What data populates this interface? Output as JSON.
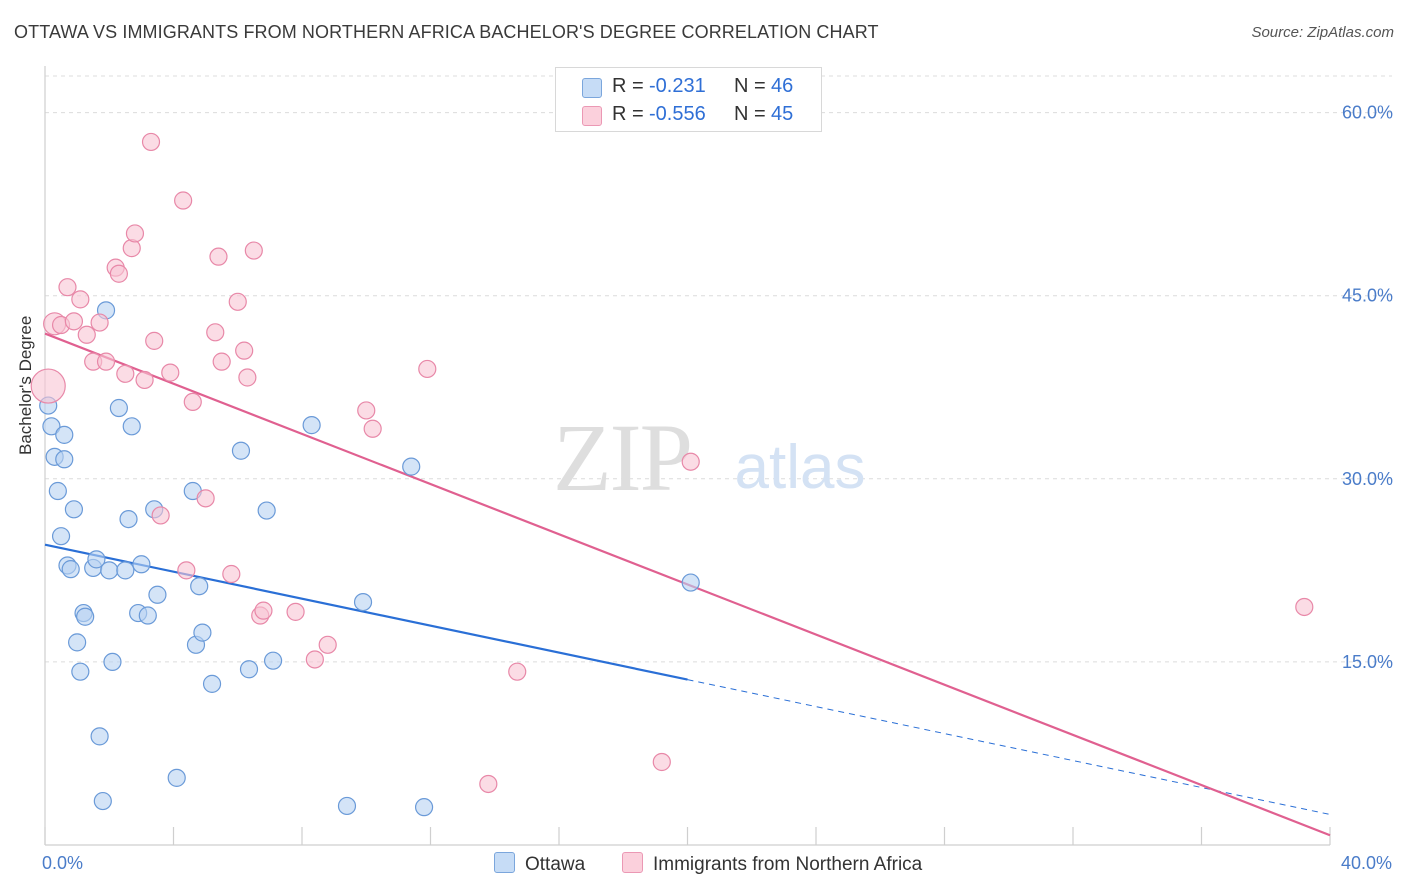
{
  "title": "OTTAWA VS IMMIGRANTS FROM NORTHERN AFRICA BACHELOR'S DEGREE CORRELATION CHART",
  "source": "Source: ZipAtlas.com",
  "watermark": {
    "zip": "ZIP",
    "atlas": "atlas"
  },
  "legend": {
    "r_label": "R =",
    "n_label": "N =",
    "rows": [
      {
        "r": "-0.231",
        "n": "46",
        "color": "#a8c8f0"
      },
      {
        "r": "-0.556",
        "n": "45",
        "color": "#f8b8cc"
      }
    ]
  },
  "bottom_legend": [
    "Ottawa",
    "Immigrants from Northern Africa"
  ],
  "colors": {
    "ottawa_fill": "#b8d2f2",
    "ottawa_stroke": "#6a9ad8",
    "ottawa_line": "#2a6fd6",
    "nafrica_fill": "#f9c4d4",
    "nafrica_stroke": "#e888a8",
    "nafrica_line": "#e06090",
    "tick": "#4a7cc9",
    "grid": "#dcdcdc"
  },
  "chart_data": {
    "type": "scatter",
    "title": "OTTAWA VS IMMIGRANTS FROM NORTHERN AFRICA BACHELOR'S DEGREE CORRELATION CHART",
    "xlabel": "",
    "ylabel": "Bachelor's Degree",
    "xlim": [
      0,
      40
    ],
    "ylim": [
      0,
      63
    ],
    "x_tick_labels": [
      "0.0%",
      "40.0%"
    ],
    "y_ticks": [
      15,
      30,
      45,
      60
    ],
    "y_tick_labels": [
      "15.0%",
      "30.0%",
      "45.0%",
      "60.0%"
    ],
    "grid": true,
    "legend_position": "top-center",
    "series": [
      {
        "name": "Ottawa",
        "r": -0.231,
        "n": 46,
        "points": [
          [
            0.1,
            36.0
          ],
          [
            0.2,
            34.3
          ],
          [
            0.3,
            31.8
          ],
          [
            0.4,
            29.0
          ],
          [
            0.5,
            25.3
          ],
          [
            0.6,
            33.6
          ],
          [
            0.6,
            31.6
          ],
          [
            0.7,
            22.9
          ],
          [
            0.8,
            22.6
          ],
          [
            0.9,
            27.5
          ],
          [
            1.0,
            16.6
          ],
          [
            1.1,
            14.2
          ],
          [
            1.2,
            19.0
          ],
          [
            1.25,
            18.7
          ],
          [
            1.5,
            22.7
          ],
          [
            1.6,
            23.4
          ],
          [
            1.7,
            8.9
          ],
          [
            1.8,
            3.6
          ],
          [
            1.9,
            43.8
          ],
          [
            2.0,
            22.5
          ],
          [
            2.1,
            15.0
          ],
          [
            2.3,
            35.8
          ],
          [
            2.5,
            22.5
          ],
          [
            2.6,
            26.7
          ],
          [
            2.7,
            34.3
          ],
          [
            2.9,
            19.0
          ],
          [
            3.0,
            23.0
          ],
          [
            3.2,
            18.8
          ],
          [
            3.4,
            27.5
          ],
          [
            3.5,
            20.5
          ],
          [
            4.1,
            5.5
          ],
          [
            4.6,
            29.0
          ],
          [
            4.7,
            16.4
          ],
          [
            4.8,
            21.2
          ],
          [
            4.9,
            17.4
          ],
          [
            5.2,
            13.2
          ],
          [
            6.1,
            32.3
          ],
          [
            6.35,
            14.4
          ],
          [
            6.9,
            27.4
          ],
          [
            7.1,
            15.1
          ],
          [
            8.3,
            34.4
          ],
          [
            9.4,
            3.2
          ],
          [
            9.9,
            19.9
          ],
          [
            11.4,
            31.0
          ],
          [
            11.8,
            3.1
          ],
          [
            20.1,
            21.5
          ]
        ]
      },
      {
        "name": "Immigrants from Northern Africa",
        "r": -0.556,
        "n": 45,
        "points": [
          [
            0.1,
            37.6
          ],
          [
            0.3,
            42.7
          ],
          [
            0.5,
            42.6
          ],
          [
            0.7,
            45.7
          ],
          [
            0.9,
            42.9
          ],
          [
            1.1,
            44.7
          ],
          [
            1.3,
            41.8
          ],
          [
            1.5,
            39.6
          ],
          [
            1.7,
            42.8
          ],
          [
            1.9,
            39.6
          ],
          [
            2.2,
            47.3
          ],
          [
            2.3,
            46.8
          ],
          [
            2.5,
            38.6
          ],
          [
            2.7,
            48.9
          ],
          [
            2.8,
            50.1
          ],
          [
            3.1,
            38.1
          ],
          [
            3.3,
            57.6
          ],
          [
            3.4,
            41.3
          ],
          [
            3.6,
            27.0
          ],
          [
            3.9,
            38.7
          ],
          [
            4.3,
            52.8
          ],
          [
            4.4,
            22.5
          ],
          [
            4.6,
            36.3
          ],
          [
            5.0,
            28.4
          ],
          [
            5.3,
            42.0
          ],
          [
            5.4,
            48.2
          ],
          [
            5.5,
            39.6
          ],
          [
            5.8,
            22.2
          ],
          [
            6.0,
            44.5
          ],
          [
            6.2,
            40.5
          ],
          [
            6.3,
            38.3
          ],
          [
            6.5,
            48.7
          ],
          [
            6.7,
            18.8
          ],
          [
            6.8,
            19.2
          ],
          [
            7.8,
            19.1
          ],
          [
            8.4,
            15.2
          ],
          [
            8.8,
            16.4
          ],
          [
            10.0,
            35.6
          ],
          [
            10.2,
            34.1
          ],
          [
            11.9,
            39.0
          ],
          [
            13.8,
            5.0
          ],
          [
            14.7,
            14.2
          ],
          [
            19.2,
            6.8
          ],
          [
            20.1,
            31.4
          ],
          [
            39.2,
            19.5
          ]
        ]
      }
    ],
    "trendlines": [
      {
        "series": "Ottawa",
        "x": [
          0,
          40
        ],
        "y": [
          24.6,
          2.5
        ],
        "solid_until_x": 20
      },
      {
        "series": "Immigrants from Northern Africa",
        "x": [
          0,
          40
        ],
        "y": [
          41.9,
          0.8
        ]
      }
    ]
  }
}
